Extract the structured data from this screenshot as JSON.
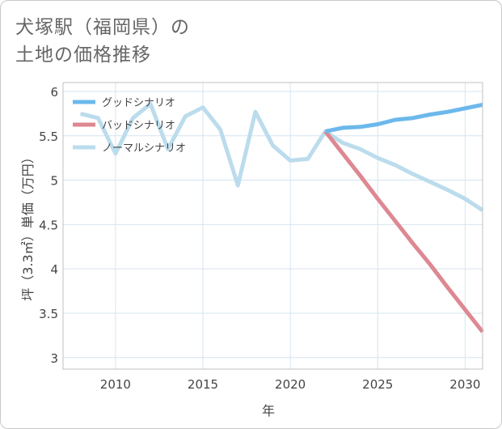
{
  "title_lines": [
    "犬塚駅（福岡県）の",
    "土地の価格推移"
  ],
  "chart_data": {
    "type": "line",
    "xlabel": "年",
    "ylabel": "坪（3.3㎡）単価（万円）",
    "xlim": [
      2007,
      2031
    ],
    "ylim": [
      2.87,
      6.1
    ],
    "x_ticks": [
      2010,
      2015,
      2020,
      2025,
      2030
    ],
    "y_ticks": [
      3,
      3.5,
      4,
      4.5,
      5,
      5.5,
      6
    ],
    "y_tick_labels": [
      "3",
      "3.5",
      "4",
      "4.5",
      "5",
      "5.5",
      "6"
    ],
    "grid": true,
    "legend_position": "top-left",
    "series": [
      {
        "name": "グッドシナリオ",
        "color": "#6cb8ec",
        "x": [
          2022,
          2023,
          2024,
          2025,
          2026,
          2027,
          2028,
          2029,
          2030,
          2031
        ],
        "y": [
          5.55,
          5.59,
          5.6,
          5.63,
          5.68,
          5.7,
          5.74,
          5.77,
          5.81,
          5.85
        ]
      },
      {
        "name": "バッドシナリオ",
        "color": "#dd8892",
        "x": [
          2022,
          2023,
          2024,
          2025,
          2026,
          2027,
          2028,
          2029,
          2030,
          2031
        ],
        "y": [
          5.55,
          5.3,
          5.05,
          4.79,
          4.54,
          4.29,
          4.05,
          3.79,
          3.54,
          3.29
        ]
      },
      {
        "name": "ノーマルシナリオ",
        "color": "#bbdcec",
        "x": [
          2008,
          2009,
          2010,
          2011,
          2012,
          2013,
          2014,
          2015,
          2016,
          2017,
          2018,
          2019,
          2020,
          2021,
          2022,
          2023,
          2024,
          2025,
          2026,
          2027,
          2028,
          2029,
          2030,
          2031
        ],
        "y": [
          5.75,
          5.7,
          5.3,
          5.7,
          5.86,
          5.35,
          5.72,
          5.82,
          5.57,
          4.94,
          5.77,
          5.39,
          5.22,
          5.24,
          5.55,
          5.42,
          5.35,
          5.25,
          5.17,
          5.07,
          4.98,
          4.89,
          4.79,
          4.66
        ]
      }
    ]
  }
}
